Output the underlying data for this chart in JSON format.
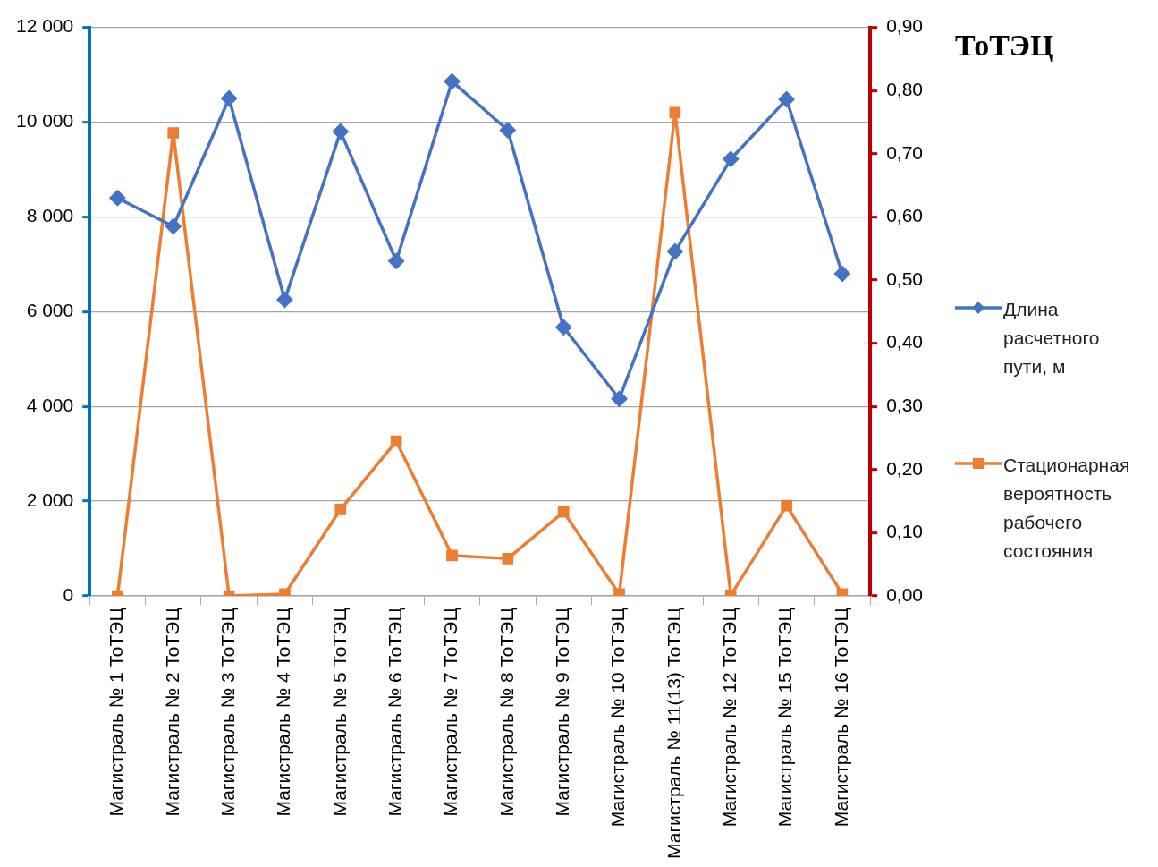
{
  "chart_data": {
    "type": "line",
    "title": "ТоТЭЦ",
    "categories": [
      "Магистраль № 1 ТоТЭЦ",
      "Магистраль № 2 ТоТЭЦ",
      "Магистраль № 3 ТоТЭЦ",
      "Магистраль № 4 ТоТЭЦ",
      "Магистраль № 5 ТоТЭЦ",
      "Магистраль № 6 ТоТЭЦ",
      "Магистраль № 7 ТоТЭЦ",
      "Магистраль № 8 ТоТЭЦ",
      "Магистраль № 9 ТоТЭЦ",
      "Магистраль № 10 ТоТЭЦ",
      "Магистраль № 11(13) ТоТЭЦ",
      "Магистраль № 12 ТоТЭЦ",
      "Магистраль № 15 ТоТЭЦ",
      "Магистраль № 16 ТоТЭЦ"
    ],
    "series": [
      {
        "name": "Длина расчетного пути, м",
        "color": "#4472c4",
        "marker": "diamond",
        "values": [
          8400,
          7800,
          10500,
          6250,
          9800,
          7070,
          10860,
          9830,
          5670,
          4160,
          7270,
          9220,
          10480,
          6800
        ]
      },
      {
        "name": "Стационарная вероятность рабочего состояния",
        "color": "#ed7d31",
        "marker": "square",
        "axis": "y2",
        "values": [
          0,
          0.733,
          0,
          0.003,
          0.137,
          0.245,
          0.064,
          0.059,
          0.133,
          0.003,
          0.765,
          0.001,
          0.143,
          0.003
        ]
      }
    ],
    "ylim": [
      0,
      12000
    ],
    "yticks": [
      0,
      {
        "value": 2000,
        "label": "2 000"
      },
      {
        "value": 4000,
        "label": "4 000"
      },
      {
        "value": 6000,
        "label": "6 000"
      },
      {
        "value": 8000,
        "label": "8 000"
      },
      {
        "value": 10000,
        "label": "10 000"
      },
      {
        "value": 12000,
        "label": "12 000"
      }
    ],
    "y2lim": [
      0,
      0.9
    ],
    "y2ticks": [
      {
        "value": 0,
        "label": "0,00"
      },
      {
        "value": 0.1,
        "label": "0,10"
      },
      {
        "value": 0.2,
        "label": "0,20"
      },
      {
        "value": 0.3,
        "label": "0,30"
      },
      {
        "value": 0.4,
        "label": "0,40"
      },
      {
        "value": 0.5,
        "label": "0,50"
      },
      {
        "value": 0.6,
        "label": "0,60"
      },
      {
        "value": 0.7,
        "label": "0,70"
      },
      {
        "value": 0.8,
        "label": "0,80"
      },
      {
        "value": 0.9,
        "label": "0,90"
      }
    ],
    "grid": "y",
    "legend": "right",
    "line_style": "solid"
  }
}
